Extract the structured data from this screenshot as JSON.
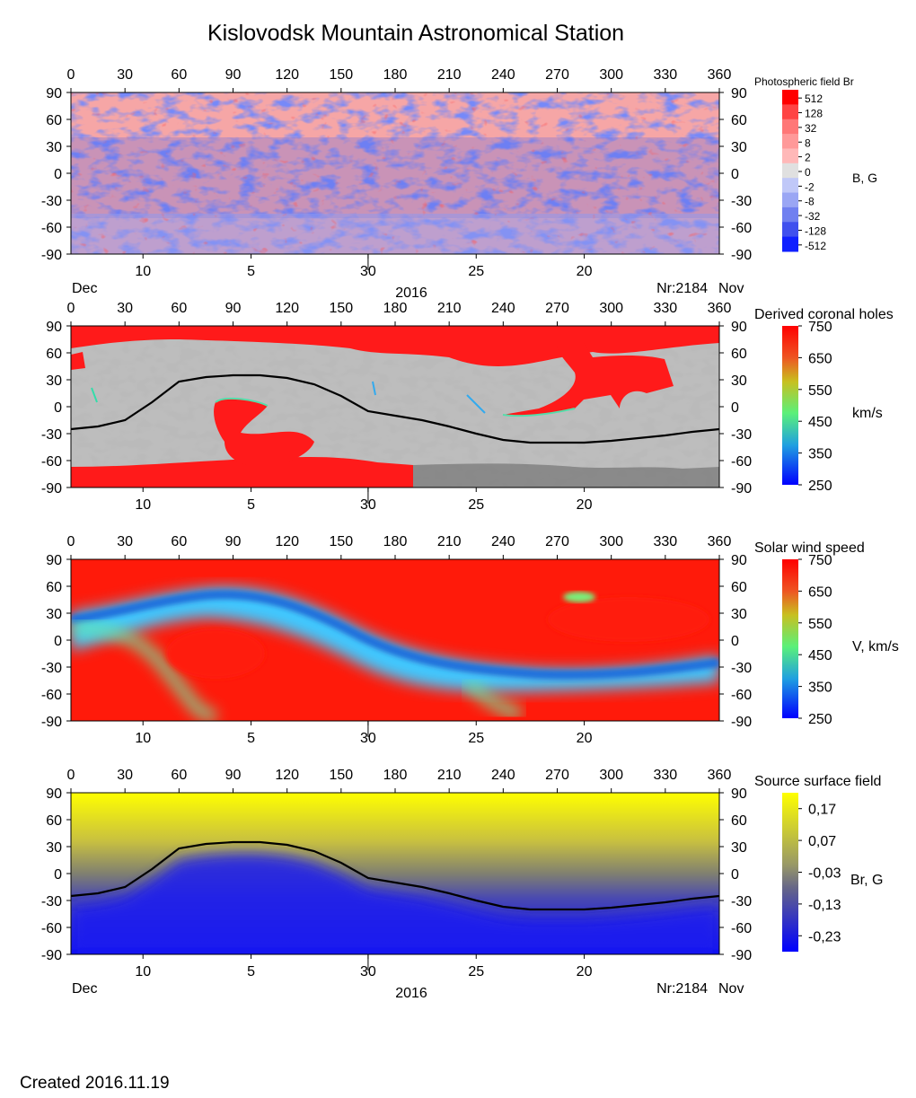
{
  "title": "Kislovodsk Mountain Astronomical Station",
  "created": "Created  2016.11.19",
  "axes": {
    "longitude_ticks": [
      "0",
      "30",
      "60",
      "90",
      "120",
      "150",
      "180",
      "210",
      "240",
      "270",
      "300",
      "330",
      "360"
    ],
    "latitude_ticks": [
      "90",
      "60",
      "30",
      "0",
      "-30",
      "-60",
      "-90"
    ],
    "date_ticks": [
      "10",
      "5",
      "30",
      "25",
      "20"
    ],
    "month_left": "Dec",
    "month_right": "Nov",
    "year": "2016",
    "rotation": "Nr:2184"
  },
  "colors": {
    "red": "#ff1a1a",
    "pink": "#f4a4a4",
    "blue": "#2233ee",
    "grey_light": "#bdbdbd",
    "grey_dark": "#7d7d7d",
    "yellow": "#ffff00",
    "neutral_line": "#000000"
  },
  "chart_data": [
    {
      "type": "heatmap",
      "name": "photospheric",
      "title": "Photospheric field Br",
      "colorbar": {
        "unit": "B, G",
        "ticks": [
          "512",
          "128",
          "32",
          "8",
          "2",
          "0",
          "-2",
          "-8",
          "-32",
          "-128",
          "-512"
        ]
      },
      "xlim": [
        0,
        360
      ],
      "ylim": [
        -90,
        90
      ]
    },
    {
      "type": "heatmap",
      "name": "coronal-holes",
      "title": "Derived coronal holes",
      "colorbar": {
        "unit": "km/s",
        "ticks": [
          "750",
          "650",
          "550",
          "450",
          "350",
          "250"
        ]
      },
      "xlim": [
        0,
        360
      ],
      "ylim": [
        -90,
        90
      ],
      "neutral_line": [
        [
          0,
          -25
        ],
        [
          15,
          -22
        ],
        [
          30,
          -15
        ],
        [
          45,
          5
        ],
        [
          60,
          28
        ],
        [
          75,
          33
        ],
        [
          90,
          35
        ],
        [
          105,
          35
        ],
        [
          120,
          32
        ],
        [
          135,
          25
        ],
        [
          150,
          12
        ],
        [
          165,
          -5
        ],
        [
          180,
          -10
        ],
        [
          195,
          -15
        ],
        [
          210,
          -22
        ],
        [
          225,
          -30
        ],
        [
          240,
          -37
        ],
        [
          255,
          -40
        ],
        [
          270,
          -40
        ],
        [
          285,
          -40
        ],
        [
          300,
          -38
        ],
        [
          315,
          -35
        ],
        [
          330,
          -32
        ],
        [
          345,
          -28
        ],
        [
          360,
          -25
        ]
      ]
    },
    {
      "type": "heatmap",
      "name": "solar-wind",
      "title": "Solar wind speed",
      "colorbar": {
        "unit": "V, km/s",
        "ticks": [
          "750",
          "650",
          "550",
          "450",
          "350",
          "250"
        ]
      },
      "xlim": [
        0,
        360
      ],
      "ylim": [
        -90,
        90
      ]
    },
    {
      "type": "heatmap",
      "name": "source-surface",
      "title": "Source surface field",
      "colorbar": {
        "unit": "Br, G",
        "ticks": [
          "0,17",
          "0,07",
          "-0,03",
          "-0,13",
          "-0,23"
        ]
      },
      "xlim": [
        0,
        360
      ],
      "ylim": [
        -90,
        90
      ],
      "neutral_line": [
        [
          0,
          -25
        ],
        [
          15,
          -22
        ],
        [
          30,
          -15
        ],
        [
          45,
          5
        ],
        [
          60,
          28
        ],
        [
          75,
          33
        ],
        [
          90,
          35
        ],
        [
          105,
          35
        ],
        [
          120,
          32
        ],
        [
          135,
          25
        ],
        [
          150,
          12
        ],
        [
          165,
          -5
        ],
        [
          180,
          -10
        ],
        [
          195,
          -15
        ],
        [
          210,
          -22
        ],
        [
          225,
          -30
        ],
        [
          240,
          -37
        ],
        [
          255,
          -40
        ],
        [
          270,
          -40
        ],
        [
          285,
          -40
        ],
        [
          300,
          -38
        ],
        [
          315,
          -35
        ],
        [
          330,
          -32
        ],
        [
          345,
          -28
        ],
        [
          360,
          -25
        ]
      ]
    }
  ]
}
